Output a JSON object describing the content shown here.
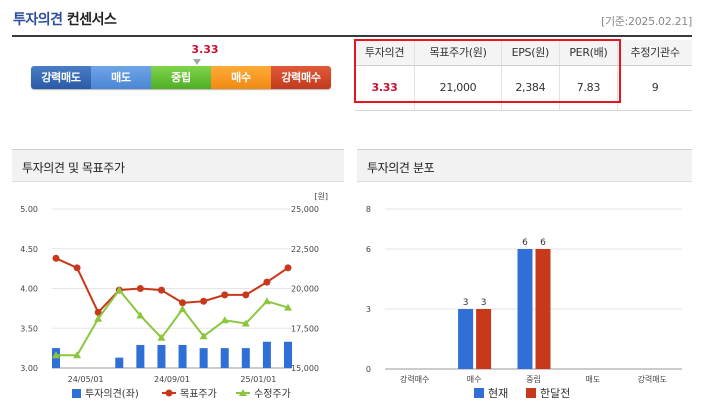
{
  "header": {
    "title_part1": "투자의견",
    "title_part2": "컨센서스",
    "base_date": "[기준:2025.02.21]"
  },
  "consensus_scale": {
    "value": "3.33",
    "segments": [
      "강력매도",
      "매도",
      "중립",
      "매수",
      "강력매수"
    ]
  },
  "summary_table": {
    "headers": [
      "투자의견",
      "목표주가(원)",
      "EPS(원)",
      "PER(배)",
      "추정기관수"
    ],
    "values": [
      "3.33",
      "21,000",
      "2,384",
      "7.83",
      "9"
    ]
  },
  "panels": {
    "left_title": "투자의견 및 목표주가",
    "right_title": "투자의견 분포"
  },
  "chart_data": [
    {
      "type": "bar+line",
      "x_labels": [
        "24/05/01",
        "24/09/01",
        "25/01/01"
      ],
      "y_left": {
        "range": [
          3.0,
          5.0
        ],
        "ticks": [
          "5.00",
          "4.50",
          "4.00",
          "3.50",
          "3.00"
        ]
      },
      "y_right": {
        "unit": "[원]",
        "range": [
          15000,
          25000
        ],
        "ticks": [
          "25,000",
          "22,500",
          "20,000",
          "17,500",
          "15,000"
        ]
      },
      "legend": [
        "투자의견(좌)",
        "목표주가",
        "수정주가"
      ],
      "colors": {
        "opinion": "#2f6fd6",
        "target": "#c8381a",
        "price": "#8cc63f"
      },
      "opinion_bars": [
        3.25,
        3.0,
        3.0,
        3.13,
        3.29,
        3.29,
        3.29,
        3.25,
        3.25,
        3.25,
        3.33,
        3.33
      ],
      "target_price": [
        21900,
        21300,
        18500,
        19900,
        20000,
        19900,
        19100,
        19200,
        19600,
        19600,
        20400,
        21300
      ],
      "adjusted_price": [
        15800,
        15800,
        18100,
        19900,
        18300,
        16900,
        18700,
        17000,
        18000,
        17800,
        19200,
        18800
      ]
    },
    {
      "type": "bar",
      "categories": [
        "강력매수",
        "매수",
        "중립",
        "매도",
        "강력매도"
      ],
      "series": [
        {
          "name": "현재",
          "values": [
            0,
            3,
            6,
            0,
            0
          ],
          "color": "#2f6fd6"
        },
        {
          "name": "한달전",
          "values": [
            0,
            3,
            6,
            0,
            0
          ],
          "color": "#c8381a"
        }
      ],
      "ylim": [
        0,
        8
      ],
      "y_ticks": [
        "8",
        "6",
        "3",
        "0"
      ],
      "legend": [
        "현재",
        "한달전"
      ]
    }
  ]
}
